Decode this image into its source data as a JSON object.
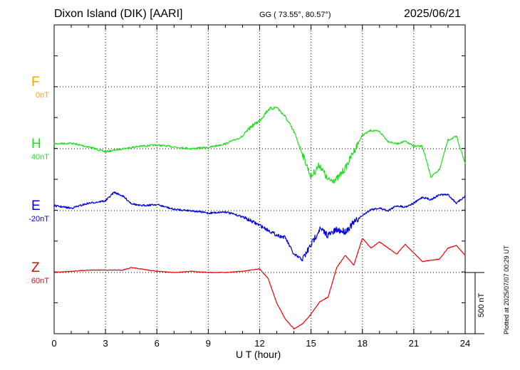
{
  "header": {
    "station": "Dixon Island (DIK)  [AARI]",
    "coords": "GG ( 73.55°,  80.57°)",
    "date": "2025/06/21"
  },
  "footer_note": "Plotted at 2025/07/07 00:29 UT",
  "scale_bar_label": "500 nT",
  "chart_data": {
    "type": "line",
    "xlabel": "U T (hour)",
    "xlim": [
      0,
      24
    ],
    "x_ticks": [
      "0",
      "3",
      "6",
      "9",
      "12",
      "15",
      "18",
      "21",
      "24"
    ],
    "scale_nt": 500,
    "colors": {
      "F": "#f5a500",
      "H": "#22dd22",
      "E": "#0000dd",
      "Z": "#ee0000"
    },
    "series": [
      {
        "name": "F",
        "base": "0nT",
        "color": "#f5a500",
        "x": [],
        "y": []
      },
      {
        "name": "H",
        "base": "40nT",
        "color": "#22dd22",
        "x": [
          0,
          1,
          2,
          3,
          4,
          5,
          6,
          7,
          8,
          9,
          10,
          11,
          11.5,
          12,
          12.5,
          13,
          13.5,
          14,
          14.5,
          15,
          15.5,
          16,
          16.5,
          17,
          17.5,
          18,
          18.5,
          19,
          19.5,
          20,
          20.5,
          21,
          21.5,
          22,
          22.5,
          23,
          23.5,
          24
        ],
        "y": [
          40,
          45,
          15,
          -25,
          0,
          20,
          30,
          15,
          0,
          10,
          40,
          100,
          180,
          230,
          320,
          340,
          260,
          140,
          -40,
          -230,
          -130,
          -260,
          -250,
          -160,
          -20,
          110,
          150,
          140,
          60,
          40,
          60,
          20,
          20,
          -230,
          -170,
          70,
          100,
          -120
        ]
      },
      {
        "name": "E",
        "base": "-20nT",
        "color": "#0000dd",
        "x": [
          0,
          1,
          2,
          3,
          3.5,
          4,
          4.5,
          5,
          6,
          7,
          8,
          9,
          10,
          11,
          12,
          12.5,
          13,
          13.5,
          14,
          14.5,
          15,
          15.5,
          16,
          16.5,
          17,
          17.5,
          18,
          18.5,
          19,
          19.5,
          20,
          20.5,
          21,
          21.5,
          22,
          22.5,
          23,
          23.5,
          24
        ],
        "y": [
          40,
          20,
          60,
          80,
          150,
          120,
          60,
          40,
          50,
          10,
          0,
          -20,
          -10,
          -50,
          -120,
          -160,
          -200,
          -220,
          -360,
          -400,
          -280,
          -150,
          -200,
          -160,
          -170,
          -100,
          -40,
          10,
          20,
          0,
          40,
          30,
          60,
          110,
          90,
          130,
          130,
          60,
          120
        ]
      },
      {
        "name": "Z",
        "base": "60nT",
        "color": "#ee0000",
        "x": [
          0,
          1,
          2,
          3,
          4,
          4.5,
          5,
          6,
          7,
          8,
          9,
          10,
          11,
          12,
          12.5,
          13,
          13.5,
          14,
          14.5,
          15,
          15.5,
          16,
          16.5,
          17,
          17.5,
          18,
          18.5,
          19,
          19.5,
          20,
          20.5,
          21,
          21.5,
          22,
          22.5,
          23,
          23.5,
          24
        ],
        "y": [
          0,
          10,
          20,
          20,
          20,
          40,
          30,
          10,
          0,
          10,
          0,
          0,
          10,
          30,
          -50,
          -250,
          -380,
          -460,
          -420,
          -340,
          -240,
          -200,
          40,
          140,
          60,
          280,
          200,
          250,
          200,
          150,
          230,
          160,
          90,
          100,
          110,
          200,
          220,
          140
        ]
      }
    ]
  }
}
